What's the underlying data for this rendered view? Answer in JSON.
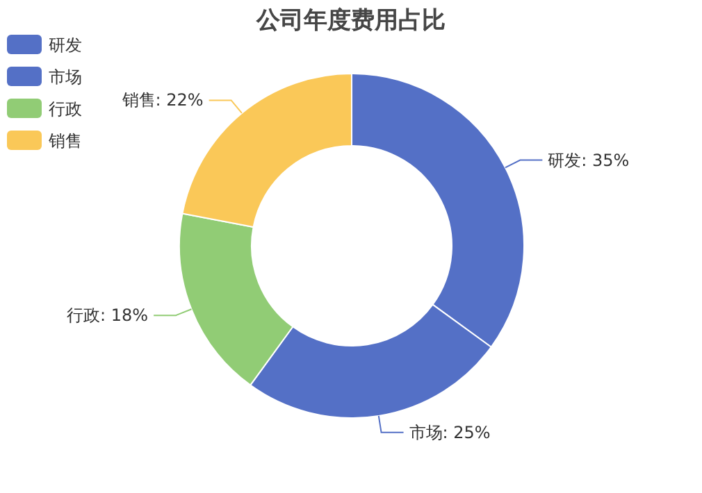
{
  "chart_data": {
    "type": "donut",
    "title": "公司年度费用占比",
    "categories": [
      "研发",
      "市场",
      "行政",
      "销售"
    ],
    "values": [
      35,
      25,
      18,
      22
    ],
    "colors": [
      "#5470c6",
      "#5470c6",
      "#91cc75",
      "#fac858"
    ],
    "value_labels": [
      "研发: 35%",
      "市场: 25%",
      "行政: 18%",
      "销售: 22%"
    ],
    "legend": "top left"
  }
}
